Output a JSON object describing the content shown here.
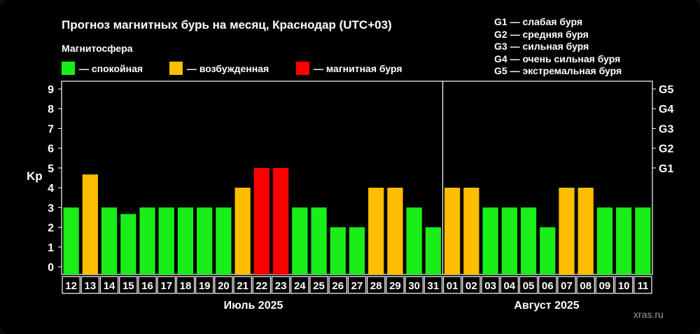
{
  "header": {
    "title": "Прогноз магнитных бурь на месяц, Краснодар (UTC+03)",
    "magnetosphere_label": "Магнитосфера"
  },
  "legend": [
    {
      "label": "— спокойная",
      "color": "#19ee19"
    },
    {
      "label": "— возбужденная",
      "color": "#ffbf00"
    },
    {
      "label": "— магнитная буря",
      "color": "#ff0000"
    }
  ],
  "g_levels": [
    "G1 — слабая буря",
    "G2 — средняя буря",
    "G3 — сильная буря",
    "G4 — очень сильная буря",
    "G5 — экстремальная буря"
  ],
  "watermark": "xras.ru",
  "chart_data": {
    "type": "bar",
    "ylabel": "Kp",
    "ylim": [
      0,
      9
    ],
    "yticks": [
      "0",
      "1",
      "2",
      "3",
      "4",
      "5",
      "6",
      "7",
      "8",
      "9"
    ],
    "right_axis_ticks": [
      {
        "value": 5,
        "label": "G1"
      },
      {
        "value": 6,
        "label": "G2"
      },
      {
        "value": 7,
        "label": "G3"
      },
      {
        "value": 8,
        "label": "G4"
      },
      {
        "value": 9,
        "label": "G5"
      }
    ],
    "categories": [
      "12",
      "13",
      "14",
      "15",
      "16",
      "17",
      "18",
      "19",
      "20",
      "21",
      "22",
      "23",
      "24",
      "25",
      "26",
      "27",
      "28",
      "29",
      "30",
      "31",
      "01",
      "02",
      "03",
      "04",
      "05",
      "06",
      "07",
      "08",
      "09",
      "10",
      "11"
    ],
    "values": [
      3,
      4.67,
      3,
      2.67,
      3,
      3,
      3,
      3,
      3,
      4,
      5,
      5,
      3,
      3,
      2,
      2,
      4,
      4,
      3,
      2,
      4,
      4,
      3,
      3,
      3,
      2,
      4,
      4,
      3,
      3,
      3
    ],
    "colors": [
      "#19ee19",
      "#ffbf00",
      "#19ee19",
      "#19ee19",
      "#19ee19",
      "#19ee19",
      "#19ee19",
      "#19ee19",
      "#19ee19",
      "#ffbf00",
      "#ff0000",
      "#ff0000",
      "#19ee19",
      "#19ee19",
      "#19ee19",
      "#19ee19",
      "#ffbf00",
      "#ffbf00",
      "#19ee19",
      "#19ee19",
      "#ffbf00",
      "#ffbf00",
      "#19ee19",
      "#19ee19",
      "#19ee19",
      "#19ee19",
      "#ffbf00",
      "#ffbf00",
      "#19ee19",
      "#19ee19",
      "#19ee19"
    ],
    "months": [
      {
        "label": "Июль 2025",
        "first_index": 0,
        "last_index": 19
      },
      {
        "label": "Август 2025",
        "first_index": 20,
        "last_index": 30
      }
    ],
    "legend_placement": "top-left",
    "grid": false
  }
}
